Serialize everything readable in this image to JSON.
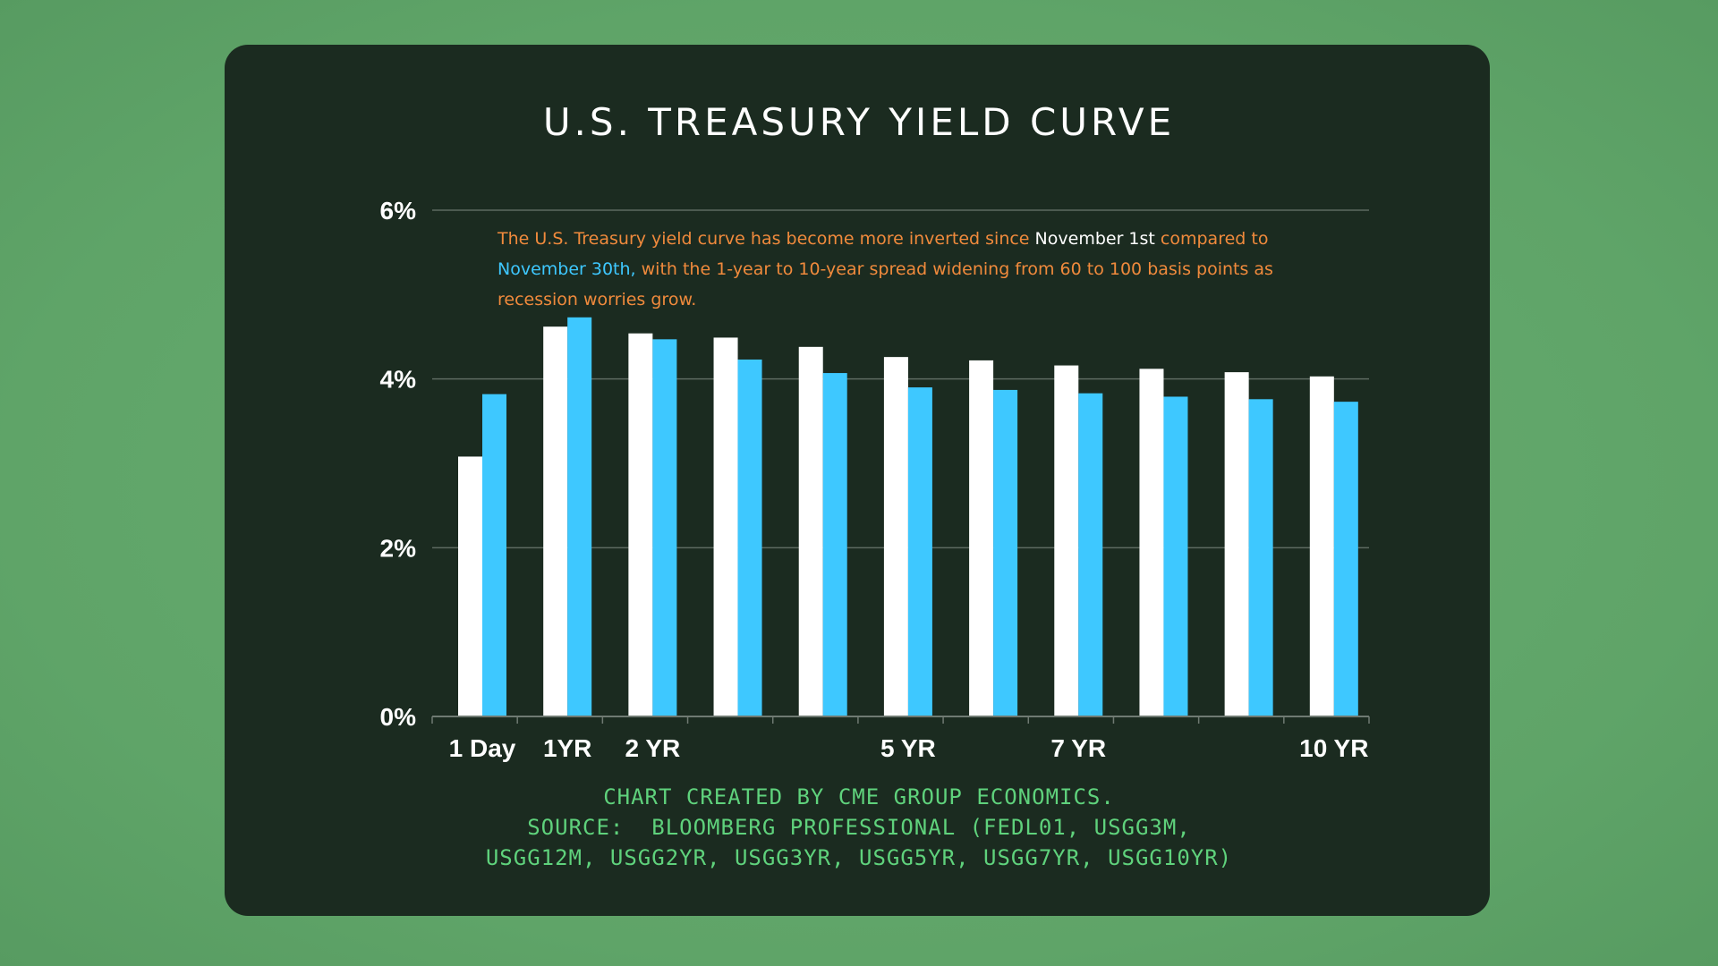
{
  "chart_data": {
    "type": "bar",
    "title": "U.S. TREASURY YIELD CURVE",
    "categories": [
      "1 Day",
      "1YR",
      "2 YR",
      "",
      "",
      "5 YR",
      "",
      "7 YR",
      "",
      "",
      "10 YR"
    ],
    "series": [
      {
        "color": "#ffffff",
        "values": [
          3.08,
          4.62,
          4.54,
          4.49,
          4.38,
          4.26,
          4.22,
          4.16,
          4.12,
          4.08,
          4.03
        ]
      },
      {
        "color": "#3ec8ff",
        "values": [
          3.82,
          4.73,
          4.47,
          4.23,
          4.07,
          3.9,
          3.87,
          3.83,
          3.79,
          3.76,
          3.73
        ]
      }
    ],
    "yticks": [
      "0%",
      "2%",
      "4%",
      "6%"
    ],
    "ylim": [
      0,
      6
    ],
    "grid": true,
    "annotation": {
      "part1": "The U.S. Treasury yield curve has become more inverted since ",
      "highlight1": "November 1st",
      "part2": " compared to ",
      "highlight2": "November 30th,",
      "part3": " with the 1-year to 10-year spread widening from 60 to 100 basis points as recession worries grow."
    },
    "footer": [
      "CHART CREATED BY CME GROUP ECONOMICS.",
      "SOURCE:  BLOOMBERG PROFESSIONAL (FEDL01, USGG3M,",
      "USGG12M, USGG2YR, USGG3YR, USGG5YR, USGG7YR, USGG10YR)"
    ]
  },
  "colors": {
    "background": "#5fa468",
    "card": "#1b2b20",
    "annotation": "#f08a3c",
    "footer": "#5fd27c"
  }
}
